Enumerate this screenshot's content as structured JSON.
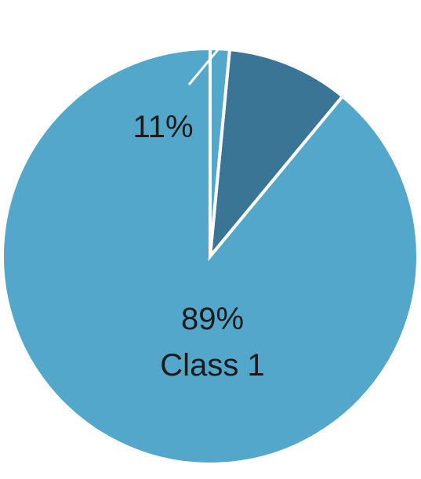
{
  "chart_data": {
    "type": "pie",
    "start": "top",
    "direction": "counterclockwise",
    "slices": [
      {
        "value": 89,
        "label": "89%",
        "name": "Class 1",
        "color": "#53a7cb"
      },
      {
        "value": 9.5,
        "label": "11%",
        "name": "",
        "color": "#3b7595"
      },
      {
        "value": 1.5,
        "label": "",
        "name": "",
        "color": "#53a7cb"
      }
    ]
  }
}
